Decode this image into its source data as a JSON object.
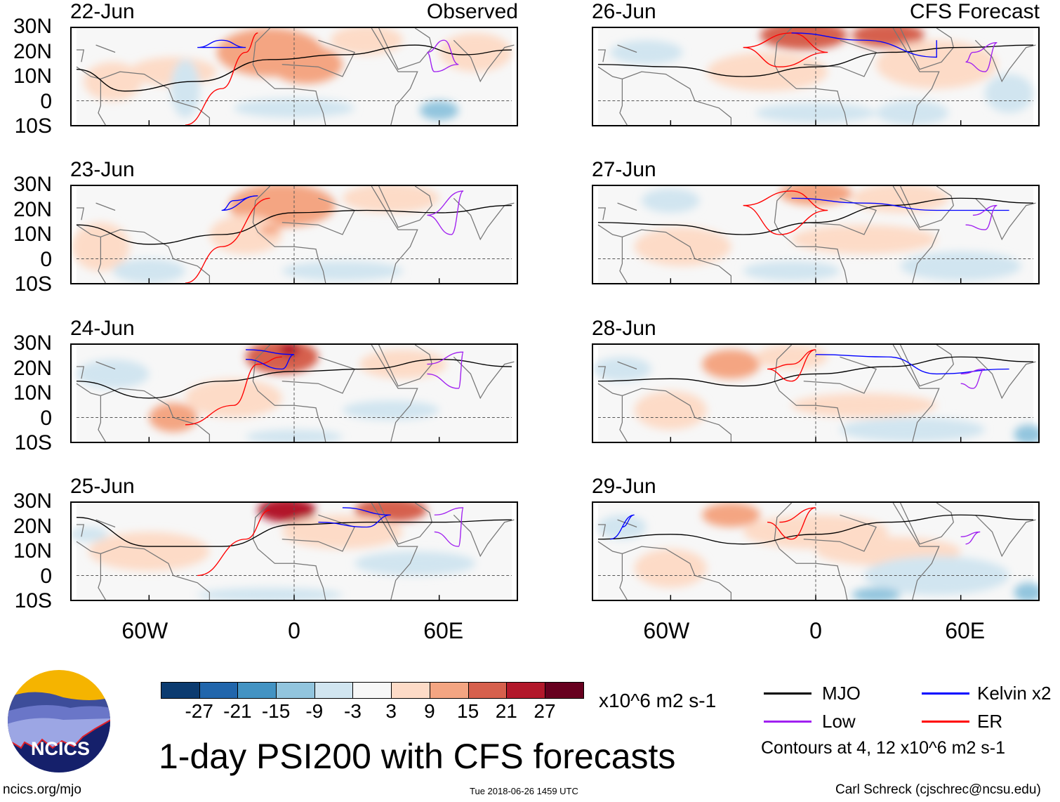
{
  "chart_data": {
    "type": "heatmap",
    "title": "1-day PSI200 with CFS forecasts",
    "variable": "PSI200",
    "units": "x10^6 m2 s-1",
    "lat_ticks": [
      "30N",
      "20N",
      "10N",
      "0",
      "10S"
    ],
    "lon_ticks": [
      "60W",
      "0",
      "60E"
    ],
    "lat_range": [
      -10,
      30
    ],
    "lon_range": [
      -90,
      90
    ],
    "colorbar": {
      "labels": [
        "-27",
        "-21",
        "-15",
        "-9",
        "-3",
        "3",
        "9",
        "15",
        "21",
        "27"
      ],
      "colors": [
        "#0b3b70",
        "#2166ac",
        "#4393c3",
        "#92c5de",
        "#d1e5f0",
        "#f7f7f7",
        "#fddbc7",
        "#f4a582",
        "#d6604d",
        "#b2182b",
        "#67001f"
      ]
    },
    "columns": [
      {
        "title": "Observed",
        "panels": [
          "22-Jun",
          "23-Jun",
          "24-Jun",
          "25-Jun"
        ]
      },
      {
        "title": "CFS Forecast",
        "panels": [
          "26-Jun",
          "27-Jun",
          "28-Jun",
          "29-Jun"
        ]
      }
    ],
    "legend": [
      {
        "label": "MJO",
        "color": "#000000"
      },
      {
        "label": "Kelvin x2",
        "color": "#0000ff"
      },
      {
        "label": "Low",
        "color": "#a020f0"
      },
      {
        "label": "ER",
        "color": "#ff0000"
      }
    ],
    "contour_note": "Contours at 4, 12 x10^6 m2 s-1"
  },
  "footer": {
    "logo_text": "NCICS",
    "url": "ncics.org/mjo",
    "timestamp": "Tue 2018-06-26 1459 UTC",
    "credit": "Carl Schreck (cjschrec@ncsu.edu)"
  }
}
